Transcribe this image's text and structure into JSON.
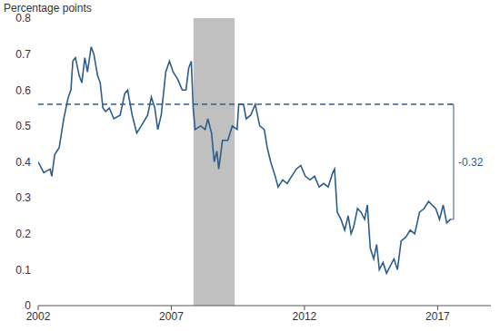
{
  "chart_data": {
    "type": "line",
    "y_label": "Percentage points",
    "x": [
      2002.0,
      2002.21,
      2002.45,
      2002.51,
      2002.62,
      2002.79,
      2002.96,
      2003.13,
      2003.23,
      2003.3,
      2003.4,
      2003.54,
      2003.64,
      2003.75,
      2003.85,
      2003.99,
      2004.09,
      2004.23,
      2004.33,
      2004.43,
      2004.53,
      2004.67,
      2004.84,
      2005.08,
      2005.25,
      2005.36,
      2005.53,
      2005.7,
      2005.87,
      2006.11,
      2006.25,
      2006.38,
      2006.49,
      2006.62,
      2006.79,
      2006.93,
      2007.07,
      2007.24,
      2007.41,
      2007.55,
      2007.65,
      2007.75,
      2007.82,
      2007.89,
      2008.1,
      2008.27,
      2008.37,
      2008.51,
      2008.61,
      2008.71,
      2008.78,
      2008.92,
      2009.12,
      2009.29,
      2009.47,
      2009.53,
      2009.71,
      2009.81,
      2009.98,
      2010.15,
      2010.32,
      2010.49,
      2010.6,
      2010.73,
      2010.9,
      2011.01,
      2011.18,
      2011.35,
      2011.52,
      2011.69,
      2011.86,
      2012.03,
      2012.21,
      2012.38,
      2012.55,
      2012.72,
      2012.89,
      2013.06,
      2013.13,
      2013.23,
      2013.37,
      2013.51,
      2013.64,
      2013.75,
      2013.85,
      2013.99,
      2014.12,
      2014.26,
      2014.36,
      2014.47,
      2014.6,
      2014.71,
      2014.81,
      2014.95,
      2015.08,
      2015.22,
      2015.36,
      2015.49,
      2015.63,
      2015.8,
      2015.97,
      2016.14,
      2016.32,
      2016.49,
      2016.66,
      2016.79,
      2016.93,
      2017.07,
      2017.21,
      2017.34,
      2017.48
    ],
    "values": [
      0.4,
      0.37,
      0.38,
      0.36,
      0.42,
      0.44,
      0.52,
      0.58,
      0.6,
      0.68,
      0.69,
      0.64,
      0.62,
      0.69,
      0.65,
      0.72,
      0.7,
      0.64,
      0.62,
      0.55,
      0.54,
      0.55,
      0.52,
      0.53,
      0.59,
      0.6,
      0.53,
      0.48,
      0.5,
      0.53,
      0.58,
      0.55,
      0.49,
      0.53,
      0.65,
      0.68,
      0.65,
      0.63,
      0.6,
      0.6,
      0.66,
      0.68,
      0.55,
      0.49,
      0.5,
      0.49,
      0.52,
      0.48,
      0.4,
      0.43,
      0.38,
      0.46,
      0.46,
      0.5,
      0.49,
      0.56,
      0.56,
      0.52,
      0.53,
      0.56,
      0.5,
      0.49,
      0.44,
      0.4,
      0.36,
      0.33,
      0.35,
      0.34,
      0.36,
      0.38,
      0.39,
      0.36,
      0.35,
      0.36,
      0.33,
      0.34,
      0.33,
      0.37,
      0.38,
      0.26,
      0.24,
      0.21,
      0.25,
      0.2,
      0.22,
      0.27,
      0.26,
      0.24,
      0.28,
      0.16,
      0.13,
      0.17,
      0.1,
      0.12,
      0.09,
      0.11,
      0.13,
      0.1,
      0.18,
      0.19,
      0.21,
      0.2,
      0.26,
      0.27,
      0.29,
      0.28,
      0.27,
      0.24,
      0.28,
      0.23,
      0.24
    ],
    "color": "#2c5d8c",
    "xlim": [
      2002,
      2019
    ],
    "xticks": [
      2002,
      2007,
      2012,
      2017
    ],
    "ylim": [
      0,
      0.8
    ],
    "yticks": [
      0,
      0.1,
      0.2,
      0.3,
      0.4,
      0.5,
      0.6,
      0.7,
      0.8
    ],
    "grid": false,
    "shaded_ranges": [
      [
        2007.83,
        2009.38
      ]
    ],
    "shaded_color": "#c0c0c0",
    "reference_line": {
      "value": 0.56,
      "line_style": "dashed"
    },
    "annotation": {
      "text": "-0.32",
      "from": 0.56,
      "to": 0.24
    }
  }
}
